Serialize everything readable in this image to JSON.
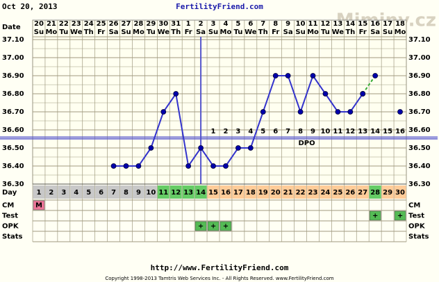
{
  "chart_data": {
    "type": "bbt",
    "date_label": "Oct 20, 2013",
    "title": "FertilityFriend.com",
    "watermark": "Miminy.cz",
    "footer_url": "http://www.FertilityFriend.com",
    "copyright": "Copyright 1998-2013 Tamtris Web Services Inc. - All Rights Reserved. www.FertilityFriend.com",
    "date_row_label": "Date",
    "dates": [
      "20",
      "21",
      "22",
      "23",
      "24",
      "25",
      "26",
      "27",
      "28",
      "29",
      "30",
      "31",
      "1",
      "2",
      "3",
      "4",
      "5",
      "6",
      "7",
      "8",
      "9",
      "10",
      "11",
      "12",
      "13",
      "14",
      "15",
      "16",
      "17",
      "18"
    ],
    "weekdays": [
      "Su",
      "Mo",
      "Tu",
      "We",
      "Th",
      "Fr",
      "Sa",
      "Su",
      "Mo",
      "Tu",
      "We",
      "Th",
      "Fr",
      "Sa",
      "Su",
      "Mo",
      "Tu",
      "We",
      "Th",
      "Fr",
      "Sa",
      "Su",
      "Mo",
      "Tu",
      "We",
      "Th",
      "Fr",
      "Sa",
      "Su",
      "Mo"
    ],
    "ylim": [
      36.3,
      37.1
    ],
    "yticks": [
      {
        "value": 36.3,
        "label": "36.30"
      },
      {
        "value": 36.4,
        "label": "36.40"
      },
      {
        "value": 36.5,
        "label": "36.50"
      },
      {
        "value": 36.6,
        "label": "36.60"
      },
      {
        "value": 36.7,
        "label": "36.70"
      },
      {
        "value": 36.8,
        "label": "36.80"
      },
      {
        "value": 36.9,
        "label": "36.90"
      },
      {
        "value": 37.0,
        "label": "37.00"
      },
      {
        "value": 37.1,
        "label": "37.10"
      }
    ],
    "grid": true,
    "series": [
      {
        "color": "#0000aa",
        "line_color": "#3333cc",
        "dashed": false,
        "values": [
          null,
          null,
          null,
          null,
          null,
          null,
          36.4,
          36.4,
          36.4,
          36.5,
          36.7,
          36.8,
          36.4,
          36.5,
          36.4,
          36.4,
          36.5,
          36.5,
          36.7,
          36.9,
          36.9,
          36.7,
          36.9,
          36.8,
          36.7,
          36.7,
          36.8,
          null,
          null,
          null
        ]
      },
      {
        "color": "#0000aa",
        "line_color": "#33aa33",
        "dashed": true,
        "values": [
          null,
          null,
          null,
          null,
          null,
          null,
          null,
          null,
          null,
          null,
          null,
          null,
          null,
          null,
          null,
          null,
          null,
          null,
          null,
          null,
          null,
          null,
          null,
          null,
          null,
          null,
          36.8,
          36.9,
          null,
          36.7
        ]
      }
    ],
    "coverline": 36.56,
    "coverline_color": "#5555cc",
    "ovulation_cycle_day": 14,
    "dpo_label": "DPO",
    "dpo": [
      null,
      null,
      null,
      null,
      null,
      null,
      null,
      null,
      null,
      null,
      null,
      null,
      null,
      null,
      1,
      2,
      3,
      4,
      5,
      6,
      7,
      8,
      9,
      10,
      11,
      12,
      13,
      14,
      15,
      16
    ],
    "day_row_label": "Day",
    "cycle_days": [
      1,
      2,
      3,
      4,
      5,
      6,
      7,
      8,
      9,
      10,
      11,
      12,
      13,
      14,
      15,
      16,
      17,
      18,
      19,
      20,
      21,
      22,
      23,
      24,
      25,
      26,
      27,
      28,
      29,
      30
    ],
    "day_colors": [
      "#c8c8c8",
      "#c8c8c8",
      "#c8c8c8",
      "#c8c8c8",
      "#c8c8c8",
      "#c8c8c8",
      "#c8c8c8",
      "#c8c8c8",
      "#c8c8c8",
      "#c8c8c8",
      "#66cc66",
      "#66cc66",
      "#66cc66",
      "#66cc66",
      "#ffcc99",
      "#ffcc99",
      "#ffcc99",
      "#ffcc99",
      "#ffcc99",
      "#ffcc99",
      "#ffcc99",
      "#ffcc99",
      "#ffcc99",
      "#ffcc99",
      "#ffcc99",
      "#ffcc99",
      "#ffcc99",
      "#66cc66",
      "#ffcc99",
      "#ffcc99"
    ],
    "rows": [
      {
        "label": "CM",
        "color": "#ee7799",
        "cells": [
          "M",
          null,
          null,
          null,
          null,
          null,
          null,
          null,
          null,
          null,
          null,
          null,
          null,
          null,
          null,
          null,
          null,
          null,
          null,
          null,
          null,
          null,
          null,
          null,
          null,
          null,
          null,
          null,
          null,
          null
        ]
      },
      {
        "label": "Test",
        "color": "#55bb55",
        "cells": [
          null,
          null,
          null,
          null,
          null,
          null,
          null,
          null,
          null,
          null,
          null,
          null,
          null,
          null,
          null,
          null,
          null,
          null,
          null,
          null,
          null,
          null,
          null,
          null,
          null,
          null,
          null,
          "+",
          null,
          "+"
        ]
      },
      {
        "label": "OPK",
        "color": "#55bb55",
        "cells": [
          null,
          null,
          null,
          null,
          null,
          null,
          null,
          null,
          null,
          null,
          null,
          null,
          null,
          "+",
          "+",
          "+",
          null,
          null,
          null,
          null,
          null,
          null,
          null,
          null,
          null,
          null,
          null,
          null,
          null,
          null
        ]
      },
      {
        "label": "Stats",
        "color": "#55bb55",
        "cells": [
          null,
          null,
          null,
          null,
          null,
          null,
          null,
          null,
          null,
          null,
          null,
          null,
          null,
          null,
          null,
          null,
          null,
          null,
          null,
          null,
          null,
          null,
          null,
          null,
          null,
          null,
          null,
          null,
          null,
          null
        ]
      }
    ]
  }
}
